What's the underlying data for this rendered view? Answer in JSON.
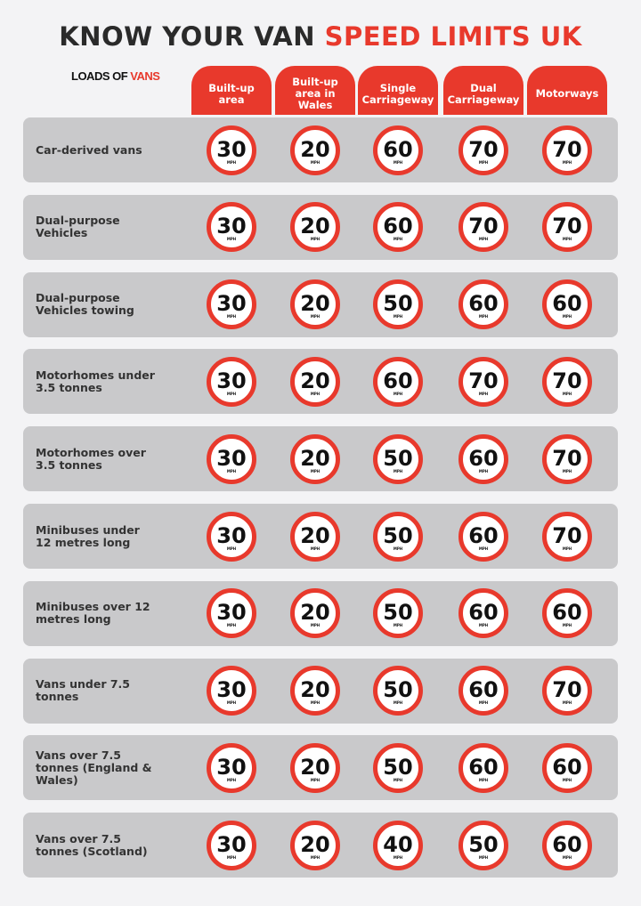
{
  "header": {
    "title_dark": "KNOW YOUR VAN",
    "title_red": "SPEED LIMITS UK",
    "logo_dark": "LOADS OF",
    "logo_red": "VANS"
  },
  "table": {
    "columns": [
      "Built-up area",
      "Built-up area in Wales",
      "Single Carriageway",
      "Dual Carriageway",
      "Motorways"
    ],
    "unit": "MPH",
    "rows": [
      {
        "label": "Car-derived vans",
        "values": [
          30,
          20,
          60,
          70,
          70
        ]
      },
      {
        "label": "Dual-purpose Vehicles",
        "values": [
          30,
          20,
          60,
          70,
          70
        ]
      },
      {
        "label": "Dual-purpose Vehicles towing",
        "values": [
          30,
          20,
          50,
          60,
          60
        ]
      },
      {
        "label": "Motorhomes under 3.5 tonnes",
        "values": [
          30,
          20,
          60,
          70,
          70
        ]
      },
      {
        "label": "Motorhomes over 3.5 tonnes",
        "values": [
          30,
          20,
          50,
          60,
          70
        ]
      },
      {
        "label": "Minibuses under 12 metres long",
        "values": [
          30,
          20,
          50,
          60,
          70
        ]
      },
      {
        "label": "Minibuses over 12 metres long",
        "values": [
          30,
          20,
          50,
          60,
          60
        ]
      },
      {
        "label": "Vans under 7.5 tonnes",
        "values": [
          30,
          20,
          50,
          60,
          70
        ]
      },
      {
        "label": "Vans over 7.5 tonnes (England & Wales)",
        "values": [
          30,
          20,
          50,
          60,
          60
        ]
      },
      {
        "label": "Vans over 7.5 tonnes (Scotland)",
        "values": [
          30,
          20,
          40,
          50,
          60
        ]
      }
    ]
  }
}
